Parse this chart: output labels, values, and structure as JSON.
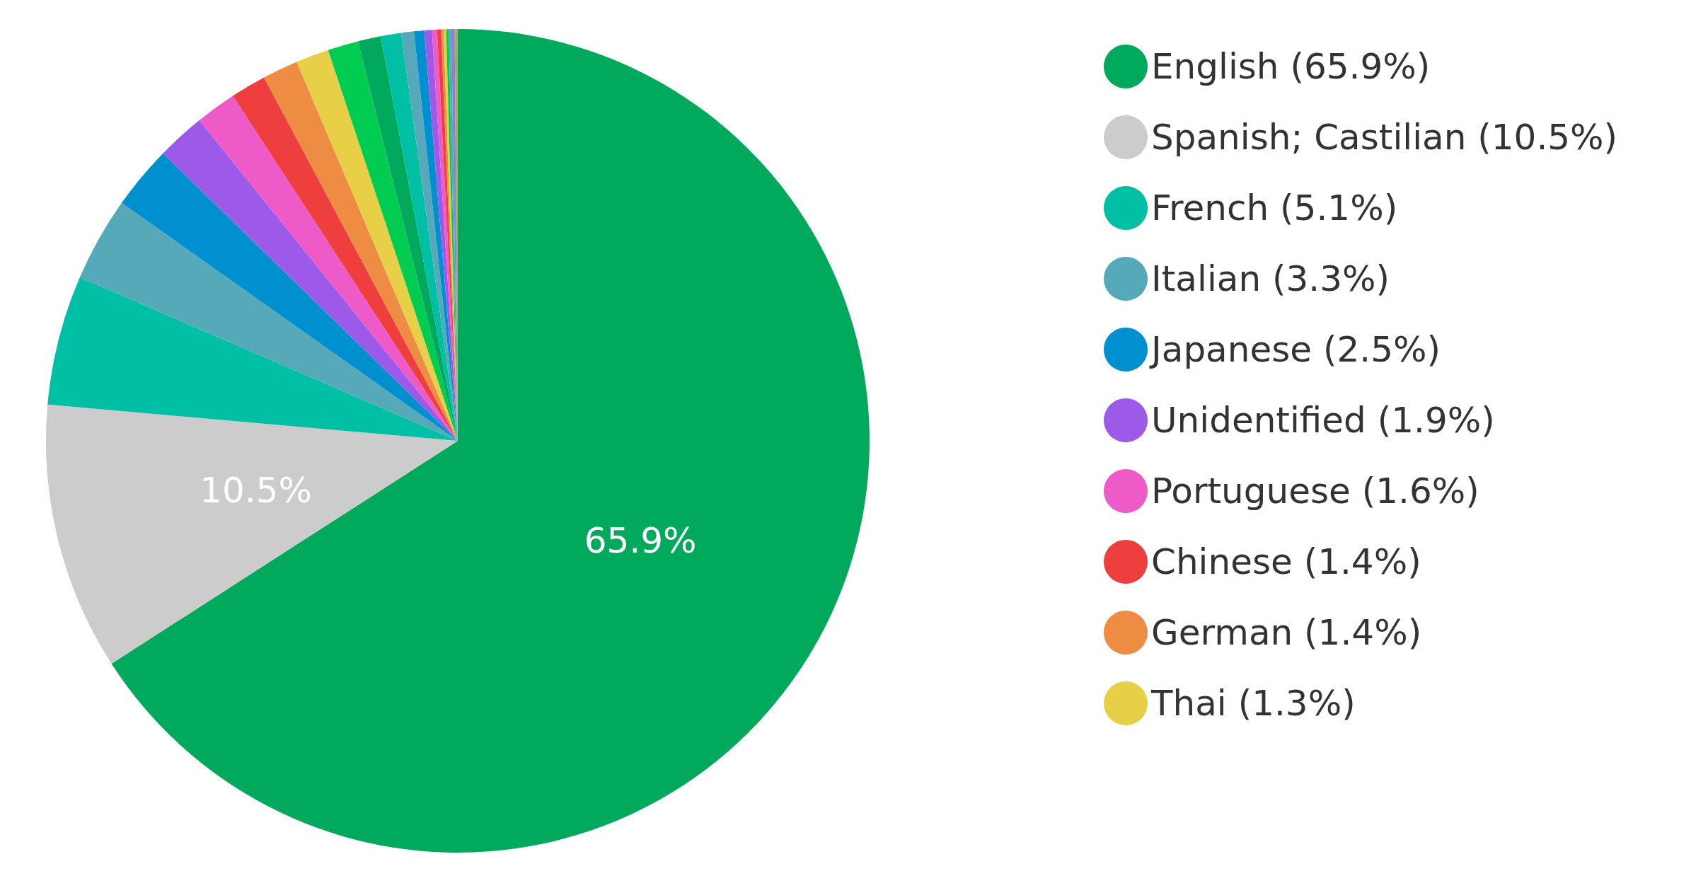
{
  "chart_data": {
    "type": "pie",
    "categories": [
      "English (65.9%)",
      "Spanish; Castilian (10.5%)",
      "French (5.1%)",
      "Italian (3.3%)",
      "Japanese (2.5%)",
      "Unidentified (1.9%)",
      "Portuguese (1.6%)",
      "Chinese (1.4%)",
      "German (1.4%)",
      "Thai (1.3%)",
      null,
      null,
      null,
      null,
      null,
      null,
      null,
      null,
      null,
      null,
      null,
      null,
      null,
      null
    ],
    "values": [
      65.9,
      10.5,
      5.1,
      3.3,
      2.5,
      1.9,
      1.6,
      1.4,
      1.4,
      1.3,
      1.2,
      0.9,
      0.8,
      0.5,
      0.4,
      0.3,
      0.2,
      0.15,
      0.1,
      0.1,
      0.1,
      0.1,
      0.13,
      0.12
    ],
    "colors": [
      "#00a95c",
      "#cccccc",
      "#00bfa5",
      "#56a9b9",
      "#0090d0",
      "#9d59e8",
      "#ee5bc9",
      "#ee3e3e",
      "#ef8c43",
      "#e8cf48",
      "#00cc52",
      "#00a95c",
      "#00bfa5",
      "#56a9b9",
      "#0090d0",
      "#9d59e8",
      "#ee5bc9",
      "#ee3e3e",
      "#ef8c43",
      "#e8cf48",
      "#00cc52",
      "#56a9b9",
      "#8a7ee0",
      "#b0a860"
    ],
    "value_labels": [
      "65.9%",
      "10.5%",
      null,
      null,
      null,
      null,
      null,
      null,
      null,
      null,
      null,
      null,
      null,
      null,
      null,
      null,
      null,
      null,
      null,
      null,
      null,
      null,
      null,
      null
    ],
    "legend": "right"
  }
}
